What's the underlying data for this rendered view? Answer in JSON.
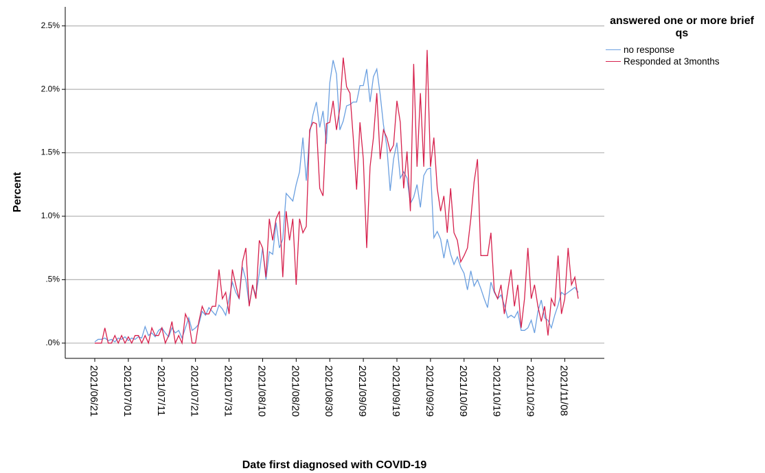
{
  "chart_data": {
    "type": "line",
    "x_label": "Date first diagnosed with COVID-19",
    "y_label": "Percent",
    "legend_title": "answered one or more brief qs",
    "legend_position": "outside-top-right",
    "grid": true,
    "categories": [
      "2021/06/21",
      null,
      null,
      null,
      null,
      null,
      null,
      null,
      null,
      null,
      "2021/07/01",
      null,
      null,
      null,
      null,
      null,
      null,
      null,
      null,
      null,
      "2021/07/11",
      null,
      null,
      null,
      null,
      null,
      null,
      null,
      null,
      null,
      "2021/07/21",
      null,
      null,
      null,
      null,
      null,
      null,
      null,
      null,
      null,
      "2021/07/31",
      null,
      null,
      null,
      null,
      null,
      null,
      null,
      null,
      null,
      "2021/08/10",
      null,
      null,
      null,
      null,
      null,
      null,
      null,
      null,
      null,
      "2021/08/20",
      null,
      null,
      null,
      null,
      null,
      null,
      null,
      null,
      null,
      "2021/08/30",
      null,
      null,
      null,
      null,
      null,
      null,
      null,
      null,
      null,
      "2021/09/09",
      null,
      null,
      null,
      null,
      null,
      null,
      null,
      null,
      null,
      "2021/09/19",
      null,
      null,
      null,
      null,
      null,
      null,
      null,
      null,
      null,
      "2021/09/29",
      null,
      null,
      null,
      null,
      null,
      null,
      null,
      null,
      null,
      "2021/10/09",
      null,
      null,
      null,
      null,
      null,
      null,
      null,
      null,
      null,
      "2021/10/19",
      null,
      null,
      null,
      null,
      null,
      null,
      null,
      null,
      null,
      "2021/10/29",
      null,
      null,
      null,
      null,
      null,
      null,
      null,
      null,
      null,
      "2021/11/08",
      null,
      null,
      null,
      null
    ],
    "ylim": [
      -0.12,
      2.65
    ],
    "yticks": [
      {
        "value": 0,
        "label": ".0%"
      },
      {
        "value": 0.5,
        "label": ".5%"
      },
      {
        "value": 1.0,
        "label": "1.0%"
      },
      {
        "value": 1.5,
        "label": "1.5%"
      },
      {
        "value": 2.0,
        "label": "2.0%"
      },
      {
        "value": 2.5,
        "label": "2.5%"
      }
    ],
    "series": [
      {
        "name": "no response",
        "color": "#6a9fe0",
        "values": [
          0.01,
          0.03,
          0.03,
          0.04,
          0.02,
          0.03,
          0.01,
          0.04,
          0.03,
          0.05,
          0.02,
          0.04,
          0.03,
          0.05,
          0.04,
          0.13,
          0.06,
          0.08,
          0.05,
          0.1,
          0.12,
          0.08,
          0.05,
          0.12,
          0.08,
          0.1,
          0.04,
          0.12,
          0.2,
          0.1,
          0.12,
          0.15,
          0.25,
          0.22,
          0.28,
          0.25,
          0.22,
          0.3,
          0.27,
          0.22,
          0.35,
          0.48,
          0.4,
          0.35,
          0.6,
          0.5,
          0.3,
          0.45,
          0.38,
          0.55,
          0.75,
          0.5,
          0.72,
          0.7,
          0.95,
          0.75,
          0.82,
          1.18,
          1.15,
          1.12,
          1.25,
          1.35,
          1.62,
          1.28,
          1.65,
          1.8,
          1.9,
          1.7,
          1.83,
          1.57,
          2.05,
          2.23,
          2.12,
          1.68,
          1.75,
          1.87,
          1.88,
          1.9,
          1.9,
          2.03,
          2.03,
          2.16,
          1.9,
          2.1,
          2.16,
          1.96,
          1.72,
          1.55,
          1.2,
          1.45,
          1.58,
          1.3,
          1.35,
          1.3,
          1.1,
          1.15,
          1.25,
          1.07,
          1.32,
          1.37,
          1.38,
          0.83,
          0.88,
          0.82,
          0.67,
          0.82,
          0.7,
          0.62,
          0.68,
          0.6,
          0.55,
          0.42,
          0.57,
          0.45,
          0.5,
          0.43,
          0.35,
          0.28,
          0.48,
          0.4,
          0.35,
          0.38,
          0.3,
          0.2,
          0.22,
          0.2,
          0.25,
          0.1,
          0.1,
          0.12,
          0.18,
          0.08,
          0.25,
          0.34,
          0.2,
          0.18,
          0.12,
          0.22,
          0.3,
          0.4,
          0.38,
          0.4,
          0.42,
          0.44,
          0.4
        ]
      },
      {
        "name": "Responded at 3months",
        "color": "#d6204c",
        "values": [
          0,
          0,
          0,
          0.12,
          0,
          0,
          0.06,
          0,
          0.06,
          0,
          0.05,
          0,
          0.06,
          0.06,
          0,
          0.06,
          0,
          0.12,
          0.06,
          0.06,
          0.12,
          0,
          0.06,
          0.17,
          0,
          0.06,
          0,
          0.23,
          0.17,
          0,
          0,
          0.17,
          0.29,
          0.23,
          0.23,
          0.29,
          0.29,
          0.58,
          0.35,
          0.4,
          0.23,
          0.58,
          0.46,
          0.35,
          0.64,
          0.75,
          0.29,
          0.46,
          0.35,
          0.81,
          0.75,
          0.52,
          0.98,
          0.81,
          0.98,
          1.04,
          0.52,
          1.04,
          0.81,
          0.98,
          0.46,
          0.98,
          0.87,
          0.92,
          1.68,
          1.74,
          1.73,
          1.22,
          1.16,
          1.73,
          1.74,
          1.91,
          1.68,
          1.85,
          2.25,
          2.02,
          1.97,
          1.62,
          1.21,
          1.74,
          1.45,
          0.75,
          1.39,
          1.62,
          1.97,
          1.45,
          1.68,
          1.62,
          1.51,
          1.56,
          1.91,
          1.74,
          1.22,
          1.51,
          1.04,
          2.2,
          1.39,
          1.97,
          1.39,
          2.31,
          1.39,
          1.62,
          1.22,
          1.04,
          1.16,
          0.87,
          1.22,
          0.87,
          0.81,
          0.64,
          0.69,
          0.75,
          0.98,
          1.27,
          1.45,
          0.69,
          0.69,
          0.69,
          0.87,
          0.41,
          0.35,
          0.46,
          0.23,
          0.41,
          0.58,
          0.29,
          0.46,
          0.12,
          0.35,
          0.75,
          0.35,
          0.46,
          0.29,
          0.17,
          0.29,
          0.06,
          0.35,
          0.29,
          0.69,
          0.23,
          0.35,
          0.75,
          0.46,
          0.52,
          0.35
        ]
      }
    ]
  }
}
